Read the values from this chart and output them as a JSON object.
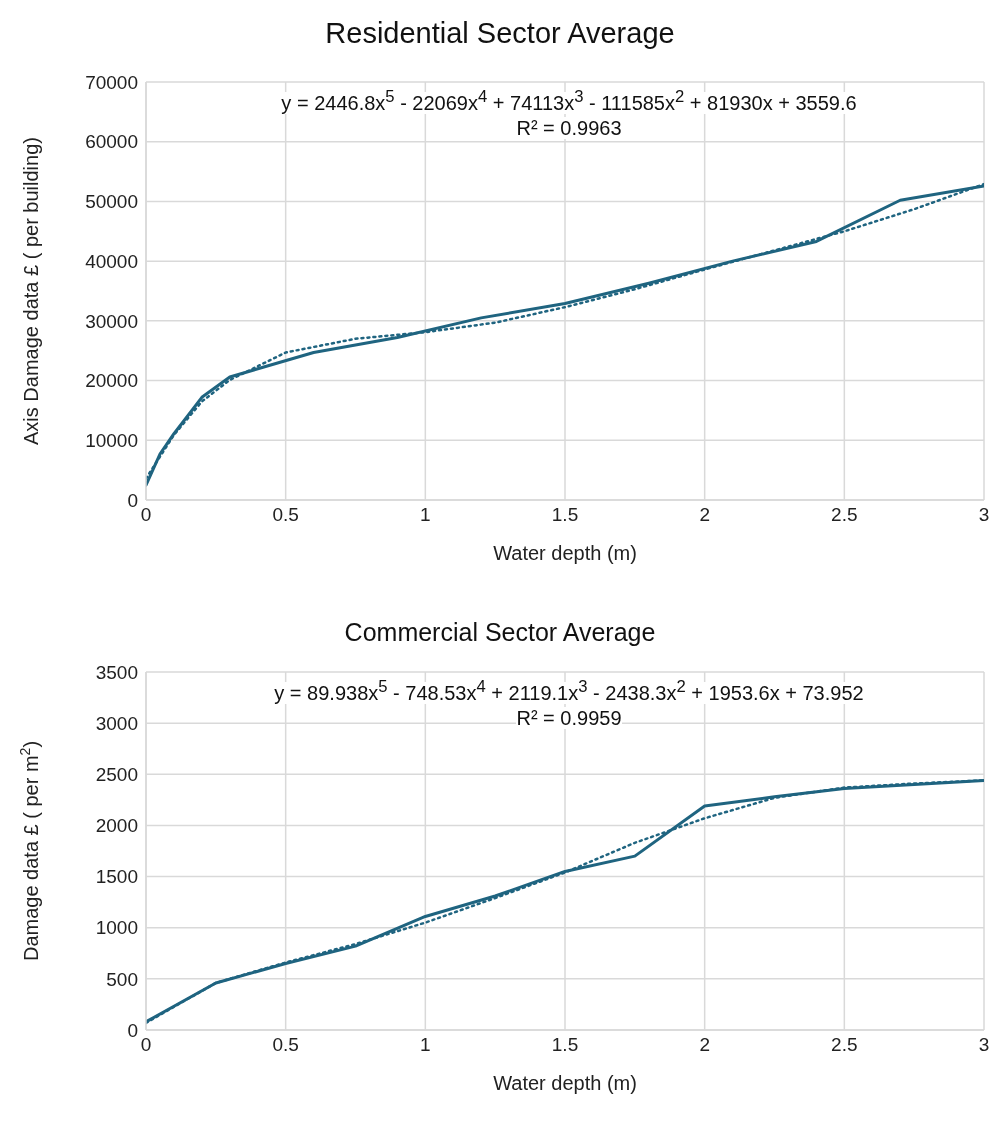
{
  "chart_data": [
    {
      "type": "line",
      "title": "Residential Sector Average",
      "xlabel": "Water depth (m)",
      "ylabel": "Axis Damage data £ ( per building)",
      "annotations": [
        "y = 2446.8x$^{5}$ - 22069x$^{4}$ + 74113x$^{3}$ - 111585x$^{2}$ + 81930x + 3559.6",
        "R² = 0.9963"
      ],
      "x": [
        0,
        0.05,
        0.1,
        0.2,
        0.3,
        0.6,
        0.9,
        1.2,
        1.5,
        1.8,
        2.1,
        2.4,
        2.7,
        3
      ],
      "series": [
        {
          "color": "#1f6480",
          "line_style": "solid",
          "values": [
            2500,
            7700,
            11100,
            17200,
            20600,
            24700,
            27200,
            30500,
            32900,
            36300,
            40000,
            43300,
            50200,
            52600
          ]
        },
        {
          "type": "line",
          "color": "#1f6480",
          "line_style": "dotted",
          "x": [
            0,
            0.1,
            0.2,
            0.3,
            0.5,
            0.75,
            1,
            1.25,
            1.5,
            1.75,
            2,
            2.25,
            2.5,
            2.75,
            3
          ],
          "values": [
            3600,
            10900,
            16500,
            20100,
            24700,
            27000,
            28100,
            29700,
            32300,
            35300,
            38600,
            41800,
            45000,
            48700,
            52900
          ]
        }
      ],
      "xlim": [
        0,
        3
      ],
      "xticks": [
        0,
        0.5,
        1,
        1.5,
        2,
        2.5,
        3
      ],
      "ylim": [
        0,
        70000
      ],
      "yticks": [
        0,
        10000,
        20000,
        30000,
        40000,
        50000,
        60000,
        70000
      ],
      "grid": true
    },
    {
      "type": "line",
      "title": "Commercial Sector Average",
      "xlabel": "Water depth (m)",
      "ylabel": "Damage data £ ( per m$^{2}$)",
      "annotations": [
        "y = 89.938x$^{5}$ - 748.53x$^{4}$ + 2119.1x$^{3}$ - 2438.3x$^{2}$ + 1953.6x + 73.952",
        "R² = 0.9959"
      ],
      "x": [
        0,
        0.25,
        0.5,
        0.75,
        1,
        1.25,
        1.5,
        1.75,
        2,
        2.25,
        2.5,
        2.75,
        3
      ],
      "series": [
        {
          "color": "#1f6480",
          "line_style": "solid",
          "values": [
            80,
            460,
            650,
            820,
            1110,
            1310,
            1550,
            1700,
            2190,
            2280,
            2360,
            2400,
            2440
          ]
        },
        {
          "type": "line",
          "color": "#1f6480",
          "line_style": "dotted",
          "x": [
            0,
            0.25,
            0.5,
            0.75,
            1,
            1.25,
            1.5,
            1.75,
            2,
            2.25,
            2.5,
            2.75,
            3
          ],
          "values": [
            70,
            460,
            660,
            840,
            1050,
            1290,
            1540,
            1830,
            2070,
            2270,
            2370,
            2410,
            2440
          ]
        }
      ],
      "xlim": [
        0,
        3
      ],
      "xticks": [
        0,
        0.5,
        1,
        1.5,
        2,
        2.5,
        3
      ],
      "ylim": [
        0,
        3500
      ],
      "yticks": [
        0,
        500,
        1000,
        1500,
        2000,
        2500,
        3000,
        3500
      ],
      "grid": true
    }
  ]
}
